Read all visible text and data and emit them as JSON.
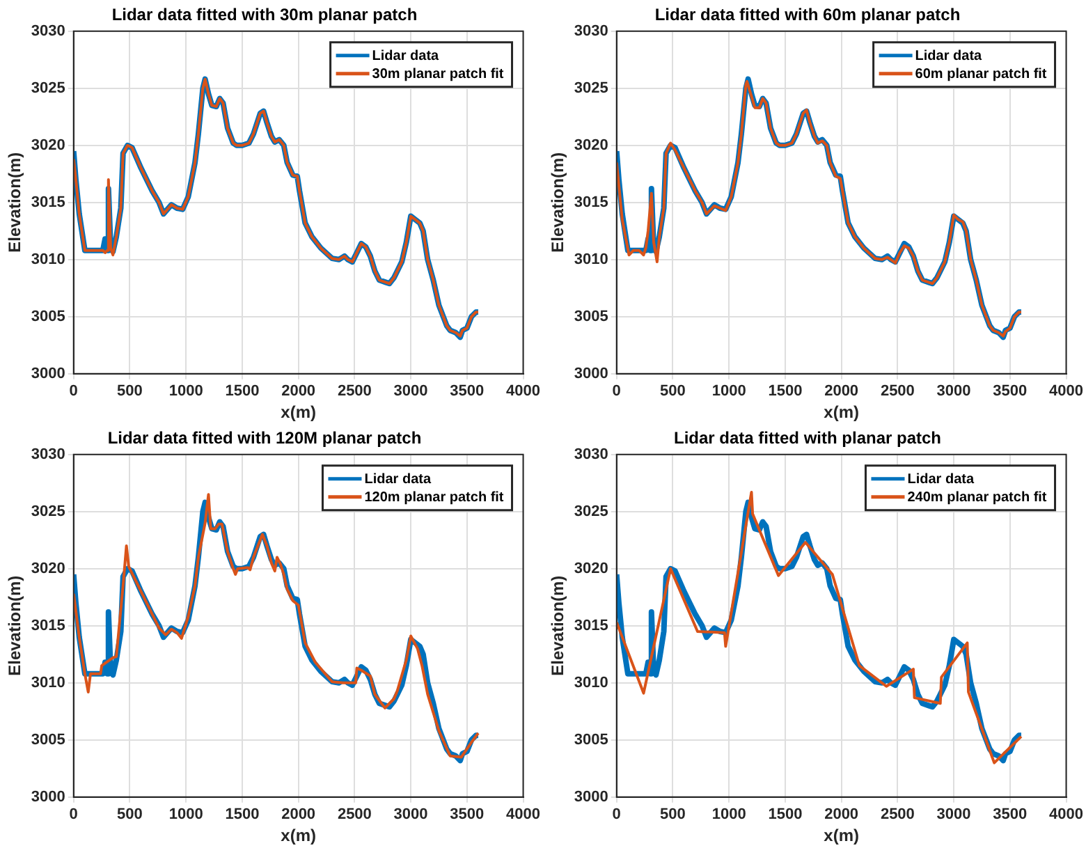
{
  "chart_data": [
    {
      "type": "line",
      "title": "Lidar data fitted with 30m planar patch",
      "xlabel": "x(m)",
      "ylabel": "Elevation(m)",
      "xlim": [
        0,
        4000
      ],
      "xticks": [
        0,
        500,
        1000,
        1500,
        2000,
        2500,
        3000,
        3500,
        4000
      ],
      "ylim": [
        3000,
        3030
      ],
      "yticks": [
        3000,
        3005,
        3010,
        3015,
        3020,
        3025,
        3030
      ],
      "grid": true,
      "legend": "top right",
      "marker": "none",
      "line_style": "solid",
      "series": [
        {
          "name": "Lidar data",
          "color": "#0072bd",
          "x": [
            0,
            20,
            50,
            100,
            150,
            200,
            260,
            280,
            300,
            310,
            330,
            350,
            380,
            420,
            440,
            480,
            520,
            600,
            700,
            760,
            800,
            870,
            920,
            970,
            1020,
            1080,
            1110,
            1150,
            1170,
            1200,
            1230,
            1270,
            1300,
            1330,
            1370,
            1420,
            1450,
            1500,
            1560,
            1600,
            1660,
            1690,
            1720,
            1760,
            1790,
            1830,
            1870,
            1900,
            1950,
            1990,
            2010,
            2060,
            2120,
            2200,
            2300,
            2360,
            2410,
            2440,
            2480,
            2520,
            2560,
            2600,
            2640,
            2680,
            2720,
            2780,
            2810,
            2850,
            2880,
            2920,
            2960,
            3000,
            3040,
            3080,
            3110,
            3150,
            3200,
            3250,
            3320,
            3350,
            3400,
            3440,
            3460,
            3500,
            3540,
            3580,
            3600
          ],
          "values": [
            3019.5,
            3017,
            3014,
            3010.8,
            3010.8,
            3010.8,
            3010.8,
            3011.8,
            3010.8,
            3016.2,
            3011,
            3010.7,
            3012,
            3014.5,
            3019.3,
            3020,
            3019.8,
            3018,
            3016,
            3015,
            3014,
            3014.8,
            3014.5,
            3014.4,
            3015.5,
            3018.5,
            3021,
            3025,
            3025.8,
            3024.5,
            3023.5,
            3023.4,
            3024.1,
            3023.7,
            3021.5,
            3020.2,
            3020,
            3020,
            3020.2,
            3021,
            3022.8,
            3023,
            3022,
            3020.8,
            3020.3,
            3020.5,
            3020,
            3018.5,
            3017.4,
            3017.3,
            3016,
            3013.2,
            3012,
            3011,
            3010.1,
            3010,
            3010.3,
            3010,
            3009.8,
            3010.6,
            3011.4,
            3011.1,
            3010.3,
            3009,
            3008.2,
            3008,
            3007.9,
            3008.4,
            3009,
            3009.8,
            3011.5,
            3013.8,
            3013.5,
            3013.2,
            3012.5,
            3010,
            3008.2,
            3006,
            3004.2,
            3003.8,
            3003.6,
            3003.2,
            3003.8,
            3004,
            3005,
            3005.4,
            3005.4
          ]
        },
        {
          "name": "30m planar patch fit",
          "color": "#d95319",
          "x": [
            0,
            20,
            50,
            100,
            150,
            200,
            260,
            280,
            300,
            310,
            330,
            350,
            380,
            420,
            440,
            480,
            520,
            600,
            700,
            760,
            800,
            870,
            920,
            970,
            1020,
            1080,
            1110,
            1150,
            1170,
            1200,
            1230,
            1270,
            1300,
            1330,
            1370,
            1420,
            1450,
            1500,
            1560,
            1600,
            1660,
            1690,
            1720,
            1760,
            1790,
            1830,
            1870,
            1900,
            1950,
            1990,
            2010,
            2060,
            2120,
            2200,
            2300,
            2360,
            2410,
            2440,
            2480,
            2520,
            2560,
            2600,
            2640,
            2680,
            2720,
            2780,
            2810,
            2850,
            2880,
            2920,
            2960,
            3000,
            3040,
            3080,
            3110,
            3150,
            3200,
            3250,
            3320,
            3350,
            3400,
            3440,
            3460,
            3500,
            3540,
            3580,
            3600
          ],
          "values": [
            3018.8,
            3017,
            3014,
            3010.8,
            3010.8,
            3010.8,
            3010.8,
            3010.6,
            3010.8,
            3017,
            3011,
            3010.4,
            3012,
            3014.5,
            3019.3,
            3020,
            3019.8,
            3018,
            3016,
            3015,
            3014,
            3014.8,
            3014.5,
            3014.4,
            3015.5,
            3018.5,
            3021,
            3025,
            3025.8,
            3024.5,
            3023.5,
            3023.4,
            3024.1,
            3023.7,
            3021.5,
            3020.2,
            3020,
            3020,
            3020.2,
            3021,
            3022.8,
            3023,
            3022,
            3020.8,
            3020.3,
            3020.5,
            3020,
            3018.5,
            3017.4,
            3017.3,
            3016,
            3013.2,
            3012,
            3011,
            3010.1,
            3010,
            3010.3,
            3010,
            3009.8,
            3010.6,
            3011.4,
            3011.1,
            3010.3,
            3009,
            3008.2,
            3008,
            3007.9,
            3008.4,
            3009,
            3009.8,
            3011.5,
            3013.8,
            3013.5,
            3013.2,
            3012.5,
            3010,
            3008.2,
            3006,
            3004.2,
            3003.8,
            3003.6,
            3003.3,
            3003.8,
            3004,
            3005,
            3005.4,
            3005.4
          ]
        }
      ]
    },
    {
      "type": "line",
      "title": "Lidar data fitted with 60m planar patch",
      "xlabel": "x(m)",
      "ylabel": "Elevation(m)",
      "xlim": [
        0,
        4000
      ],
      "xticks": [
        0,
        500,
        1000,
        1500,
        2000,
        2500,
        3000,
        3500,
        4000
      ],
      "ylim": [
        3000,
        3030
      ],
      "yticks": [
        3000,
        3005,
        3010,
        3015,
        3020,
        3025,
        3030
      ],
      "grid": true,
      "legend": "top right",
      "marker": "none",
      "line_style": "solid",
      "series": [
        {
          "name": "Lidar data",
          "color": "#0072bd",
          "x": [
            0,
            20,
            50,
            100,
            150,
            200,
            260,
            280,
            300,
            310,
            330,
            350,
            380,
            420,
            440,
            480,
            520,
            600,
            700,
            760,
            800,
            870,
            920,
            970,
            1020,
            1080,
            1110,
            1150,
            1170,
            1200,
            1230,
            1270,
            1300,
            1330,
            1370,
            1420,
            1450,
            1500,
            1560,
            1600,
            1660,
            1690,
            1720,
            1760,
            1790,
            1830,
            1870,
            1900,
            1950,
            1990,
            2010,
            2060,
            2120,
            2200,
            2300,
            2360,
            2410,
            2440,
            2480,
            2520,
            2560,
            2600,
            2640,
            2680,
            2720,
            2780,
            2810,
            2850,
            2880,
            2920,
            2960,
            3000,
            3040,
            3080,
            3110,
            3150,
            3200,
            3250,
            3320,
            3350,
            3400,
            3440,
            3460,
            3500,
            3540,
            3580,
            3600
          ],
          "values": [
            3019.5,
            3017,
            3014,
            3010.8,
            3010.8,
            3010.8,
            3010.8,
            3011.8,
            3010.8,
            3016.2,
            3011,
            3010.7,
            3012,
            3014.5,
            3019.3,
            3020,
            3019.8,
            3018,
            3016,
            3015,
            3014,
            3014.8,
            3014.5,
            3014.4,
            3015.5,
            3018.5,
            3021,
            3025,
            3025.8,
            3024.5,
            3023.5,
            3023.4,
            3024.1,
            3023.7,
            3021.5,
            3020.2,
            3020,
            3020,
            3020.2,
            3021,
            3022.8,
            3023,
            3022,
            3020.8,
            3020.3,
            3020.5,
            3020,
            3018.5,
            3017.4,
            3017.3,
            3016,
            3013.2,
            3012,
            3011,
            3010.1,
            3010,
            3010.3,
            3010,
            3009.8,
            3010.6,
            3011.4,
            3011.1,
            3010.3,
            3009,
            3008.2,
            3008,
            3007.9,
            3008.4,
            3009,
            3009.8,
            3011.5,
            3013.8,
            3013.5,
            3013.2,
            3012.5,
            3010,
            3008.2,
            3006,
            3004.2,
            3003.8,
            3003.6,
            3003.2,
            3003.8,
            3004,
            3005,
            3005.4,
            3005.4
          ]
        },
        {
          "name": "60m planar patch fit",
          "color": "#d95319",
          "x": [
            0,
            20,
            50,
            110,
            150,
            200,
            240,
            260,
            280,
            310,
            330,
            360,
            380,
            420,
            440,
            480,
            520,
            600,
            700,
            760,
            800,
            870,
            920,
            970,
            1020,
            1080,
            1110,
            1150,
            1160,
            1200,
            1230,
            1270,
            1300,
            1330,
            1370,
            1420,
            1450,
            1500,
            1560,
            1600,
            1660,
            1690,
            1720,
            1760,
            1790,
            1830,
            1870,
            1900,
            1950,
            1990,
            2010,
            2060,
            2120,
            2200,
            2300,
            2360,
            2410,
            2440,
            2480,
            2520,
            2560,
            2600,
            2640,
            2680,
            2720,
            2780,
            2810,
            2850,
            2880,
            2920,
            2960,
            3000,
            3040,
            3080,
            3110,
            3150,
            3200,
            3250,
            3320,
            3350,
            3400,
            3440,
            3460,
            3500,
            3540,
            3580,
            3600
          ],
          "values": [
            3018.5,
            3016.5,
            3013.5,
            3010.4,
            3010.8,
            3010.8,
            3010.4,
            3011,
            3012.5,
            3015.8,
            3011.5,
            3009.8,
            3012,
            3014.5,
            3019.3,
            3020.2,
            3019.6,
            3018,
            3016,
            3015,
            3014,
            3014.7,
            3014.5,
            3014.3,
            3015.5,
            3018.5,
            3021,
            3025.3,
            3025.6,
            3024.3,
            3023.3,
            3023.3,
            3024.1,
            3023.7,
            3021.5,
            3020.2,
            3020,
            3020,
            3020.2,
            3021,
            3022.8,
            3023.1,
            3022,
            3020.8,
            3020.2,
            3020.4,
            3020,
            3018.5,
            3017.3,
            3017.1,
            3016,
            3013.2,
            3012,
            3011,
            3010.1,
            3010,
            3010.2,
            3010,
            3009.7,
            3010.6,
            3011.2,
            3011,
            3010.3,
            3009,
            3008.2,
            3008,
            3007.9,
            3008.4,
            3009,
            3009.8,
            3011.5,
            3013.9,
            3013.5,
            3013.3,
            3012.5,
            3010,
            3008.2,
            3006,
            3004.2,
            3003.8,
            3003.6,
            3003.3,
            3003.7,
            3004,
            3005,
            3005.4,
            3005.4
          ]
        }
      ]
    },
    {
      "type": "line",
      "title": "Lidar data fitted with 120M planar patch",
      "xlabel": "x(m)",
      "ylabel": "Elevation(m)",
      "xlim": [
        0,
        4000
      ],
      "xticks": [
        0,
        500,
        1000,
        1500,
        2000,
        2500,
        3000,
        3500,
        4000
      ],
      "ylim": [
        3000,
        3030
      ],
      "yticks": [
        3000,
        3005,
        3010,
        3015,
        3020,
        3025,
        3030
      ],
      "grid": true,
      "legend": "top right",
      "marker": "none",
      "line_style": "solid",
      "series": [
        {
          "name": "Lidar data",
          "color": "#0072bd",
          "x": [
            0,
            20,
            50,
            100,
            150,
            200,
            260,
            280,
            300,
            310,
            330,
            350,
            380,
            420,
            440,
            480,
            520,
            600,
            700,
            760,
            800,
            870,
            920,
            970,
            1020,
            1080,
            1110,
            1150,
            1170,
            1200,
            1230,
            1270,
            1300,
            1330,
            1370,
            1420,
            1450,
            1500,
            1560,
            1600,
            1660,
            1690,
            1720,
            1760,
            1790,
            1830,
            1870,
            1900,
            1950,
            1990,
            2010,
            2060,
            2120,
            2200,
            2300,
            2360,
            2410,
            2440,
            2480,
            2520,
            2560,
            2600,
            2640,
            2680,
            2720,
            2780,
            2810,
            2850,
            2880,
            2920,
            2960,
            3000,
            3040,
            3080,
            3110,
            3150,
            3200,
            3250,
            3320,
            3350,
            3400,
            3440,
            3460,
            3500,
            3540,
            3580,
            3600
          ],
          "values": [
            3019.5,
            3017,
            3014,
            3010.8,
            3010.8,
            3010.8,
            3010.8,
            3011.8,
            3010.8,
            3016.2,
            3011,
            3010.7,
            3012,
            3014.5,
            3019.3,
            3020,
            3019.8,
            3018,
            3016,
            3015,
            3014,
            3014.8,
            3014.5,
            3014.4,
            3015.5,
            3018.5,
            3021,
            3025,
            3025.8,
            3024.5,
            3023.5,
            3023.4,
            3024.1,
            3023.7,
            3021.5,
            3020.2,
            3020,
            3020,
            3020.2,
            3021,
            3022.8,
            3023,
            3022,
            3020.8,
            3020.3,
            3020.5,
            3020,
            3018.5,
            3017.4,
            3017.3,
            3016,
            3013.2,
            3012,
            3011,
            3010.1,
            3010,
            3010.3,
            3010,
            3009.8,
            3010.6,
            3011.4,
            3011.1,
            3010.3,
            3009,
            3008.2,
            3008,
            3007.9,
            3008.4,
            3009,
            3009.8,
            3011.5,
            3013.8,
            3013.5,
            3013.2,
            3012.5,
            3010,
            3008.2,
            3006,
            3004.2,
            3003.8,
            3003.6,
            3003.2,
            3003.8,
            3004,
            3005,
            3005.4,
            3005.4
          ]
        },
        {
          "name": "120m planar patch fit",
          "color": "#d95319",
          "x": [
            0,
            50,
            100,
            130,
            150,
            240,
            250,
            350,
            380,
            440,
            470,
            490,
            600,
            700,
            760,
            820,
            870,
            920,
            960,
            1020,
            1080,
            1110,
            1170,
            1200,
            1220,
            1260,
            1290,
            1320,
            1370,
            1420,
            1440,
            1460,
            1550,
            1570,
            1600,
            1680,
            1720,
            1760,
            1790,
            1810,
            1840,
            1870,
            1900,
            1950,
            2000,
            2060,
            2150,
            2300,
            2400,
            2510,
            2520,
            2560,
            2640,
            2680,
            2770,
            2850,
            2880,
            2960,
            3000,
            3060,
            3100,
            3150,
            3250,
            3350,
            3450,
            3540,
            3600
          ],
          "values": [
            3017.8,
            3014,
            3010.8,
            3009.2,
            3010.8,
            3010.8,
            3011.5,
            3012.2,
            3012.3,
            3018.5,
            3022,
            3020.2,
            3018,
            3016,
            3014.8,
            3014.2,
            3014.7,
            3014.4,
            3013.9,
            3015.8,
            3018.5,
            3021,
            3024,
            3026.5,
            3023.5,
            3023.5,
            3023.9,
            3023.9,
            3021.5,
            3020,
            3019.5,
            3020,
            3020.1,
            3019.9,
            3021,
            3023,
            3022,
            3020.5,
            3019.8,
            3021,
            3020.4,
            3019.5,
            3018.2,
            3017.2,
            3016.8,
            3013.5,
            3011.8,
            3010.1,
            3010,
            3010,
            3011.3,
            3011.1,
            3010.6,
            3009,
            3007.8,
            3008.6,
            3009.3,
            3012,
            3014.1,
            3013,
            3011.5,
            3009,
            3005.8,
            3003.6,
            3003.5,
            3004.8,
            3005.6
          ]
        }
      ]
    },
    {
      "type": "line",
      "title": "Lidar data fitted with planar patch",
      "xlabel": "x(m)",
      "ylabel": "Elevation(m)",
      "xlim": [
        0,
        4000
      ],
      "xticks": [
        0,
        500,
        1000,
        1500,
        2000,
        2500,
        3000,
        3500,
        4000
      ],
      "ylim": [
        3000,
        3030
      ],
      "yticks": [
        3000,
        3005,
        3010,
        3015,
        3020,
        3025,
        3030
      ],
      "grid": true,
      "legend": "top right",
      "marker": "none",
      "line_style": "solid",
      "series": [
        {
          "name": "Lidar data",
          "color": "#0072bd",
          "x": [
            0,
            20,
            50,
            100,
            150,
            200,
            260,
            280,
            300,
            310,
            330,
            350,
            380,
            420,
            440,
            480,
            520,
            600,
            700,
            760,
            800,
            870,
            920,
            970,
            1020,
            1080,
            1110,
            1150,
            1170,
            1200,
            1230,
            1270,
            1300,
            1330,
            1370,
            1420,
            1450,
            1500,
            1560,
            1600,
            1660,
            1690,
            1720,
            1760,
            1790,
            1830,
            1870,
            1900,
            1950,
            1990,
            2010,
            2060,
            2120,
            2200,
            2300,
            2360,
            2410,
            2440,
            2480,
            2520,
            2560,
            2600,
            2640,
            2680,
            2720,
            2780,
            2810,
            2850,
            2880,
            2920,
            2960,
            3000,
            3040,
            3080,
            3110,
            3150,
            3200,
            3250,
            3320,
            3350,
            3400,
            3440,
            3460,
            3500,
            3540,
            3580,
            3600
          ],
          "values": [
            3019.5,
            3017,
            3014,
            3010.8,
            3010.8,
            3010.8,
            3010.8,
            3011.8,
            3010.8,
            3016.2,
            3011,
            3010.7,
            3012,
            3014.5,
            3019.3,
            3020,
            3019.8,
            3018,
            3016,
            3015,
            3014,
            3014.8,
            3014.5,
            3014.4,
            3015.5,
            3018.5,
            3021,
            3025,
            3025.8,
            3024.5,
            3023.5,
            3023.4,
            3024.1,
            3023.7,
            3021.5,
            3020.2,
            3020,
            3020,
            3020.2,
            3021,
            3022.8,
            3023,
            3022,
            3020.8,
            3020.3,
            3020.5,
            3020,
            3018.5,
            3017.4,
            3017.3,
            3016,
            3013.2,
            3012,
            3011,
            3010.1,
            3010,
            3010.3,
            3010,
            3009.8,
            3010.6,
            3011.4,
            3011.1,
            3010.3,
            3009,
            3008.2,
            3008,
            3007.9,
            3008.4,
            3009,
            3009.8,
            3011.5,
            3013.8,
            3013.5,
            3013.2,
            3012.5,
            3010,
            3008.2,
            3006,
            3004.2,
            3003.8,
            3003.6,
            3003.2,
            3003.8,
            3004,
            3005,
            3005.4,
            3005.4
          ]
        },
        {
          "name": "240m planar patch fit",
          "color": "#d95319",
          "x": [
            0,
            240,
            480,
            720,
            960,
            970,
            1200,
            1210,
            1440,
            1680,
            1920,
            2160,
            2400,
            2640,
            2650,
            2880,
            2890,
            3120,
            3130,
            3360,
            3600
          ],
          "values": [
            3015.3,
            3009.1,
            3020,
            3014.5,
            3014.4,
            3013.2,
            3026.7,
            3024.8,
            3019.4,
            3022.3,
            3019.5,
            3011.5,
            3009.7,
            3011.2,
            3008.7,
            3008.2,
            3010.5,
            3013.5,
            3009.2,
            3003,
            3005.3
          ]
        }
      ]
    }
  ]
}
